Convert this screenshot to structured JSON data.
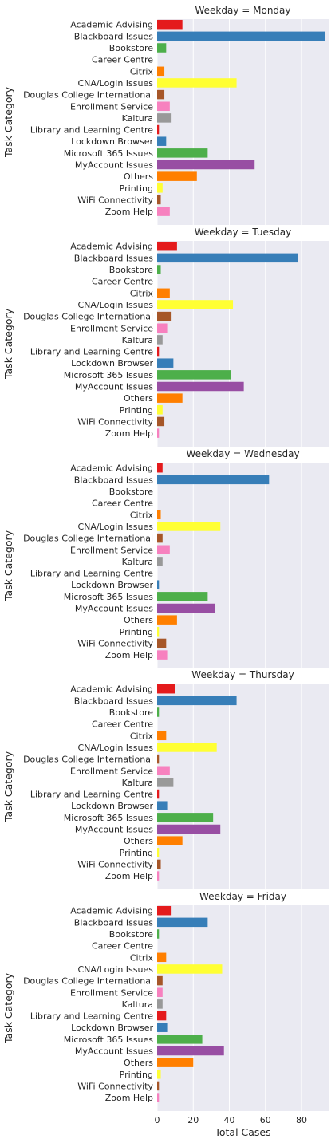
{
  "chart_data": {
    "type": "bar",
    "orientation": "horizontal",
    "facet_variable": "Weekday",
    "ylabel": "Task Category",
    "xlabel": "Total Cases",
    "xlim": [
      0,
      95
    ],
    "xticks": [
      0,
      20,
      40,
      60,
      80
    ],
    "grid": true,
    "categories": [
      "Academic Advising",
      "Blackboard Issues",
      "Bookstore",
      "Career Centre",
      "Citrix",
      "CNA/Login Issues",
      "Douglas College International",
      "Enrollment Service",
      "Kaltura",
      "Library and Learning Centre",
      "Lockdown Browser",
      "Microsoft 365 Issues",
      "MyAccount Issues",
      "Others",
      "Printing",
      "WiFi Connectivity",
      "Zoom Help"
    ],
    "colors": [
      "#e41a1c",
      "#377eb8",
      "#4daf4a",
      "#984ea3",
      "#ff7f00",
      "#ffff33",
      "#a65628",
      "#f781bf",
      "#999999",
      "#e41a1c",
      "#377eb8",
      "#4daf4a",
      "#984ea3",
      "#ff7f00",
      "#ffff33",
      "#a65628",
      "#f781bf"
    ],
    "panels": [
      {
        "title": "Weekday = Monday",
        "values": [
          14,
          93,
          5,
          0,
          4,
          44,
          4,
          7,
          8,
          1,
          5,
          28,
          54,
          22,
          3,
          2,
          7
        ]
      },
      {
        "title": "Weekday = Tuesday",
        "values": [
          11,
          78,
          2,
          0,
          7,
          42,
          8,
          6,
          3,
          1,
          9,
          41,
          48,
          14,
          3,
          4,
          1
        ]
      },
      {
        "title": "Weekday = Wednesday",
        "values": [
          3,
          62,
          0,
          0,
          2,
          35,
          3,
          7,
          3,
          0,
          1,
          28,
          32,
          11,
          1,
          5,
          6
        ]
      },
      {
        "title": "Weekday = Thursday",
        "values": [
          10,
          44,
          1,
          0,
          5,
          33,
          1,
          7,
          9,
          1,
          6,
          31,
          35,
          14,
          1,
          2,
          1
        ]
      },
      {
        "title": "Weekday = Friday",
        "values": [
          8,
          28,
          1,
          0,
          5,
          36,
          3,
          3,
          3,
          5,
          6,
          25,
          37,
          20,
          2,
          1,
          1
        ]
      }
    ]
  }
}
